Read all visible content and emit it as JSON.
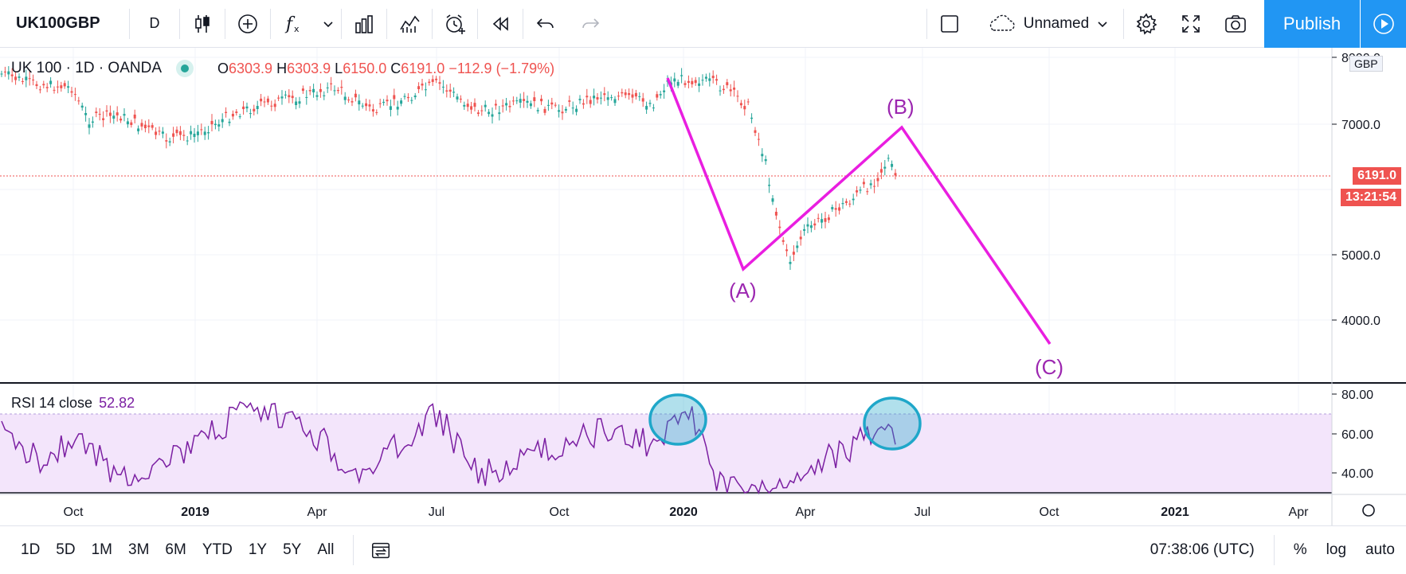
{
  "toolbar": {
    "symbol": "UK100GBP",
    "interval": "D",
    "layout_name": "Unnamed",
    "publish_label": "Publish"
  },
  "legend": {
    "title": "UK 100 · 1D · OANDA",
    "open_label": "O",
    "open": "6303.9",
    "high_label": "H",
    "high": "6303.9",
    "low_label": "L",
    "low": "6150.0",
    "close_label": "C",
    "close": "6191.0",
    "change": "−112.9 (−1.79%)"
  },
  "price_axis": {
    "currency": "GBP",
    "ticks": [
      "8000.0",
      "7000.0",
      "5000.0",
      "4000.0"
    ],
    "last_price": "6191.0",
    "countdown": "13:21:54"
  },
  "rsi": {
    "label": "RSI 14 close",
    "value": "52.82",
    "ticks": [
      "80.00",
      "60.00",
      "40.00"
    ]
  },
  "time_axis": {
    "ticks": [
      "Oct",
      "2019",
      "Apr",
      "Jul",
      "Oct",
      "2020",
      "Apr",
      "Jul",
      "Oct",
      "2021",
      "Apr"
    ]
  },
  "annotations": {
    "wave_a": "(A)",
    "wave_b": "(B)",
    "wave_c": "(C)"
  },
  "bottom_bar": {
    "ranges": [
      "1D",
      "5D",
      "1M",
      "3M",
      "6M",
      "YTD",
      "1Y",
      "5Y",
      "All"
    ],
    "clock": "07:38:06 (UTC)",
    "percent": "%",
    "log": "log",
    "auto": "auto"
  },
  "colors": {
    "accent": "#2196f3",
    "down": "#ef5350",
    "up": "#26a69a",
    "wave": "#e91ee0",
    "rsi_line": "#7b1fa2",
    "rsi_band": "#f3e5fb",
    "highlight_circle": "#1fa7c9"
  }
}
